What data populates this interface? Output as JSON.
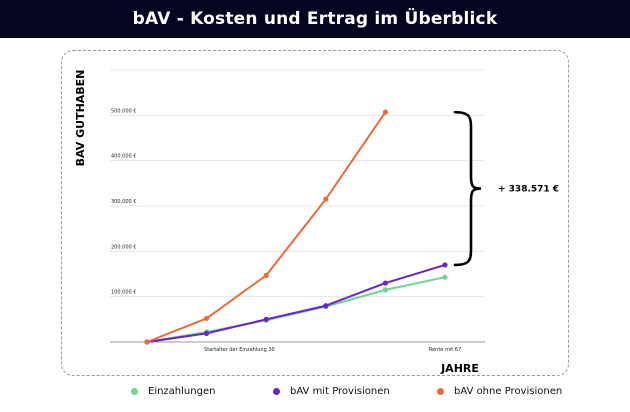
{
  "header": {
    "title": "bAV - Kosten und Ertrag im Überblick"
  },
  "annotation": {
    "difference_label": "+ 338.571 €"
  },
  "colors": {
    "header_bg": "#05051f",
    "einzahlungen": "#6dd58c",
    "mit_provisionen": "#6a24c9",
    "ohne_provisionen": "#ec6a3a"
  },
  "chart_data": {
    "type": "line",
    "title": "",
    "ylabel": "BAV GUTHABEN",
    "xlabel": "JAHRE",
    "ylim": [
      0,
      600000
    ],
    "xlim": [
      0,
      6
    ],
    "grid": true,
    "y_ticks": [
      {
        "value": 100000,
        "label": "100.000 €"
      },
      {
        "value": 200000,
        "label": "200.000 €"
      },
      {
        "value": 300000,
        "label": "300.000 €"
      },
      {
        "value": 400000,
        "label": "400.000 €"
      },
      {
        "value": 500000,
        "label": "500.000 €"
      }
    ],
    "x_ticks": [
      {
        "value": 0,
        "label": "Startalter der Einzahlung 30"
      },
      {
        "value": 6,
        "label": "Rente mit 67"
      }
    ],
    "x": [
      0,
      1,
      2,
      3,
      4,
      5,
      6
    ],
    "series": [
      {
        "name": "Einzahlungen",
        "color": "#6dd58c",
        "values": [
          0,
          22000,
          48000,
          78000,
          115000,
          143000,
          0
        ],
        "points": 6
      },
      {
        "name": "bAV mit Provisionen",
        "color": "#6a24c9",
        "values": [
          0,
          19000,
          50000,
          80000,
          130000,
          170000,
          0
        ],
        "points": 6
      },
      {
        "name": "bAV ohne Provisionen",
        "color": "#ec6a3a",
        "values": [
          0,
          52000,
          147000,
          315000,
          507000,
          0,
          0
        ],
        "points": 5
      }
    ]
  },
  "legend": {
    "items": [
      {
        "label": "Einzahlungen",
        "color": "#6dd58c"
      },
      {
        "label": "bAV mit Provisionen",
        "color": "#6a24c9"
      },
      {
        "label": "bAV ohne Provisionen",
        "color": "#ec6a3a"
      }
    ]
  }
}
